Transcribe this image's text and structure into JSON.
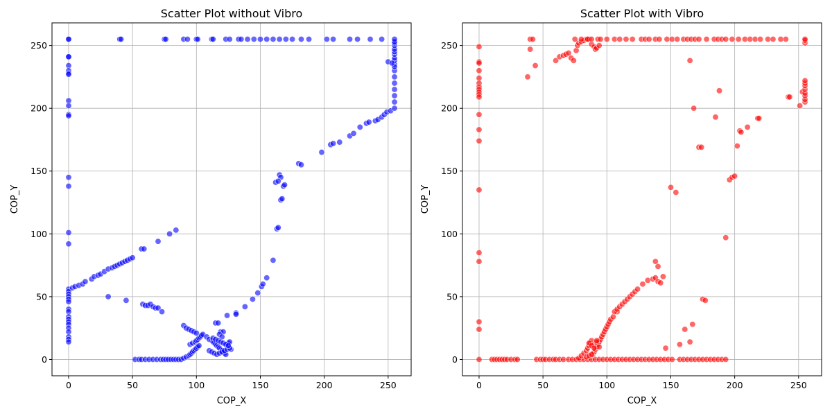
{
  "chart_data": [
    {
      "type": "scatter",
      "title": "Scatter Plot without Vibro",
      "xlabel": "COP_X",
      "ylabel": "COP_Y",
      "xlim": [
        -13,
        268
      ],
      "ylim": [
        -13,
        268
      ],
      "xticks": [
        0,
        50,
        100,
        150,
        200,
        250
      ],
      "yticks": [
        0,
        50,
        100,
        150,
        200,
        250
      ],
      "grid": true,
      "color": "#0000ff",
      "series": [
        {
          "x": [
            0,
            0,
            0,
            0,
            0,
            0,
            0,
            0,
            0,
            0,
            0,
            0,
            0,
            0,
            0,
            0,
            0,
            0,
            0,
            0,
            0,
            0,
            0,
            0,
            0,
            0,
            0,
            0,
            0,
            0,
            0,
            0,
            0,
            3,
            5,
            8,
            11,
            13,
            18,
            20,
            23,
            25,
            28,
            31,
            34,
            36,
            38,
            40,
            42,
            44,
            46,
            48,
            50,
            31,
            45,
            58,
            60,
            62,
            64,
            66,
            68,
            70,
            73,
            57,
            59,
            70,
            79,
            84,
            52,
            55,
            57,
            60,
            63,
            66,
            69,
            72,
            74,
            76,
            78,
            80,
            82,
            84,
            86,
            88,
            90,
            92,
            94,
            95,
            96,
            97,
            98,
            99,
            100,
            101,
            102,
            95,
            97,
            99,
            100,
            101,
            102,
            103,
            104,
            105,
            90,
            92,
            94,
            96,
            98,
            100,
            108,
            110,
            112,
            113,
            114,
            115,
            116,
            117,
            118,
            119,
            120,
            121,
            122,
            123,
            124,
            125,
            126,
            127,
            110,
            112,
            114,
            116,
            118,
            120,
            122,
            124,
            126,
            115,
            117,
            119,
            121,
            118,
            120,
            113,
            115,
            117,
            119,
            121,
            123,
            125,
            131,
            138,
            144,
            148,
            151,
            152,
            155,
            160,
            163,
            164,
            166,
            167,
            168,
            169,
            165,
            166,
            162,
            164,
            124,
            131,
            180,
            182,
            198,
            205,
            207,
            212,
            220,
            223,
            228,
            233,
            235,
            240,
            242,
            245,
            247,
            249,
            252,
            255,
            255,
            255,
            255,
            255,
            255,
            255,
            255,
            255,
            255,
            255,
            255,
            255,
            255,
            255,
            255,
            255,
            255,
            40,
            41,
            75,
            76,
            90,
            93,
            100,
            101,
            112,
            113,
            123,
            126,
            133,
            135,
            140,
            145,
            150,
            155,
            160,
            165,
            170,
            175,
            182,
            188,
            202,
            207,
            220,
            226,
            236,
            245,
            250,
            253
          ],
          "y": [
            255,
            255,
            241,
            241,
            234,
            230,
            228,
            227,
            206,
            202,
            195,
            194,
            145,
            138,
            101,
            92,
            56,
            54,
            52,
            50,
            48,
            46,
            40,
            38,
            34,
            32,
            30,
            28,
            25,
            22,
            18,
            16,
            14,
            57,
            58,
            59,
            60,
            62,
            64,
            66,
            67,
            68,
            70,
            72,
            73,
            74,
            75,
            76,
            77,
            78,
            79,
            80,
            81,
            50,
            47,
            44,
            43,
            43,
            44,
            42,
            41,
            41,
            38,
            88,
            88,
            94,
            100,
            103,
            0,
            0,
            0,
            0,
            0,
            0,
            0,
            0,
            0,
            0,
            0,
            0,
            0,
            0,
            0,
            0,
            1,
            2,
            3,
            4,
            5,
            6,
            7,
            8,
            9,
            10,
            11,
            12,
            13,
            14,
            15,
            16,
            17,
            18,
            19,
            20,
            27,
            25,
            24,
            23,
            22,
            21,
            18,
            16,
            15,
            14,
            13,
            12,
            11,
            10,
            9,
            8,
            7,
            6,
            5,
            4,
            12,
            13,
            14,
            8,
            7,
            6,
            5,
            4,
            5,
            6,
            7,
            8,
            9,
            29,
            29,
            22,
            22,
            20,
            18,
            17,
            16,
            15,
            14,
            13,
            12,
            11,
            37,
            42,
            48,
            53,
            58,
            60,
            65,
            79,
            104,
            105,
            127,
            128,
            138,
            139,
            147,
            145,
            141,
            142,
            35,
            36,
            156,
            155,
            165,
            171,
            172,
            173,
            178,
            180,
            185,
            188,
            189,
            190,
            191,
            193,
            195,
            197,
            198,
            200,
            205,
            210,
            215,
            220,
            225,
            230,
            235,
            238,
            240,
            243,
            245,
            247,
            250,
            252,
            253,
            255,
            233,
            255,
            255,
            255,
            255,
            255,
            255,
            255,
            255,
            255,
            255,
            255,
            255,
            255,
            255,
            255,
            255,
            255,
            255,
            255,
            255,
            255,
            255,
            255,
            255,
            255,
            255,
            255,
            255,
            255,
            255,
            237,
            236
          ]
        }
      ]
    },
    {
      "type": "scatter",
      "title": "Scatter Plot with Vibro",
      "xlabel": "COP_X",
      "ylabel": "COP_Y",
      "xlim": [
        -13,
        268
      ],
      "ylim": [
        -13,
        268
      ],
      "xticks": [
        0,
        50,
        100,
        150,
        200,
        250
      ],
      "yticks": [
        0,
        50,
        100,
        150,
        200,
        250
      ],
      "grid": true,
      "color": "#ff0000",
      "series": [
        {
          "x": [
            0,
            0,
            0,
            0,
            0,
            0,
            0,
            0,
            0,
            0,
            0,
            0,
            0,
            0,
            0,
            0,
            0,
            0,
            0,
            0,
            10,
            12,
            14,
            16,
            18,
            20,
            22,
            25,
            28,
            30,
            45,
            48,
            50,
            52,
            55,
            58,
            60,
            63,
            66,
            70,
            73,
            76,
            79,
            82,
            85,
            88,
            91,
            94,
            97,
            100,
            103,
            106,
            109,
            112,
            115,
            118,
            121,
            124,
            127,
            130,
            133,
            136,
            139,
            142,
            145,
            148,
            151,
            157,
            160,
            163,
            166,
            169,
            172,
            175,
            178,
            181,
            184,
            187,
            190,
            193,
            78,
            80,
            82,
            84,
            85,
            86,
            87,
            88,
            89,
            90,
            91,
            92,
            93,
            94,
            95,
            96,
            97,
            98,
            99,
            100,
            101,
            102,
            103,
            105,
            108,
            84,
            86,
            88,
            90,
            92,
            94,
            86,
            88,
            90,
            92,
            106,
            108,
            110,
            112,
            114,
            116,
            118,
            120,
            122,
            124,
            128,
            132,
            136,
            138,
            140,
            142,
            144,
            138,
            140,
            146,
            157,
            161,
            165,
            167,
            172,
            175,
            177,
            40,
            42,
            44,
            60,
            63,
            66,
            68,
            70,
            72,
            74,
            76,
            77,
            78,
            80,
            82,
            84,
            86,
            88,
            90,
            91,
            92,
            94,
            38,
            40,
            75,
            80,
            85,
            88,
            93,
            95,
            100,
            106,
            110,
            115,
            120,
            127,
            130,
            133,
            138,
            141,
            147,
            151,
            155,
            160,
            163,
            166,
            169,
            172,
            178,
            184,
            187,
            190,
            193,
            198,
            203,
            208,
            212,
            216,
            220,
            226,
            230,
            236,
            240,
            165,
            168,
            174,
            185,
            188,
            193,
            196,
            198,
            200,
            202,
            204,
            205,
            210,
            218,
            219,
            242,
            243,
            150,
            154,
            251,
            253,
            255,
            255,
            255,
            255,
            255,
            255,
            255,
            255,
            255,
            255,
            255
          ],
          "y": [
            249,
            237,
            236,
            230,
            224,
            220,
            217,
            215,
            213,
            211,
            209,
            195,
            183,
            174,
            135,
            85,
            78,
            30,
            24,
            0,
            0,
            0,
            0,
            0,
            0,
            0,
            0,
            0,
            0,
            0,
            0,
            0,
            0,
            0,
            0,
            0,
            0,
            0,
            0,
            0,
            0,
            0,
            0,
            0,
            0,
            0,
            0,
            0,
            0,
            0,
            0,
            0,
            0,
            0,
            0,
            0,
            0,
            0,
            0,
            0,
            0,
            0,
            0,
            0,
            0,
            0,
            0,
            0,
            0,
            0,
            0,
            0,
            0,
            0,
            0,
            0,
            0,
            0,
            0,
            0,
            1,
            3,
            5,
            7,
            9,
            11,
            13,
            15,
            4,
            6,
            8,
            10,
            12,
            14,
            16,
            18,
            20,
            22,
            24,
            26,
            28,
            30,
            32,
            34,
            38,
            2,
            3,
            4,
            12,
            14,
            10,
            13,
            11,
            9,
            15,
            38,
            40,
            42,
            44,
            46,
            48,
            50,
            52,
            54,
            56,
            60,
            63,
            64,
            65,
            62,
            61,
            66,
            78,
            74,
            9,
            12,
            24,
            14,
            28,
            169,
            48,
            47,
            255,
            255,
            234,
            238,
            241,
            242,
            243,
            244,
            240,
            238,
            246,
            250,
            252,
            253,
            254,
            255,
            255,
            251,
            249,
            247,
            248,
            250,
            225,
            247,
            255,
            255,
            255,
            255,
            255,
            255,
            255,
            255,
            255,
            255,
            255,
            255,
            255,
            255,
            255,
            255,
            255,
            255,
            255,
            255,
            255,
            255,
            255,
            255,
            255,
            255,
            255,
            255,
            255,
            255,
            255,
            255,
            255,
            255,
            255,
            255,
            255,
            255,
            255,
            238,
            200,
            169,
            193,
            214,
            97,
            143,
            145,
            146,
            170,
            182,
            181,
            185,
            192,
            192,
            209,
            209,
            137,
            133,
            202,
            213,
            205,
            207,
            210,
            212,
            215,
            218,
            220,
            222,
            252,
            254,
            255
          ]
        }
      ]
    }
  ]
}
